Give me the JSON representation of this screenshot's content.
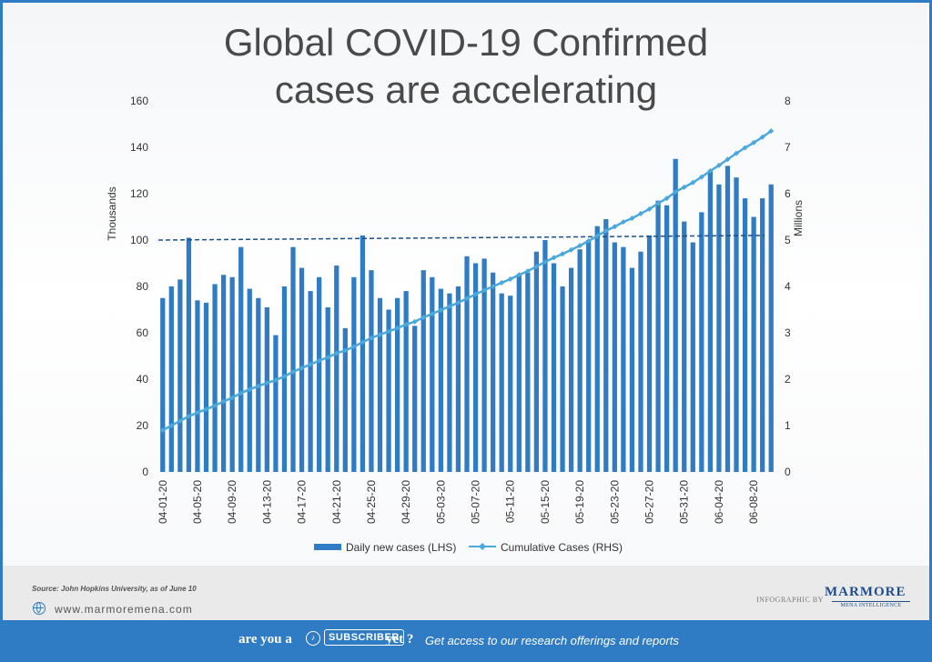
{
  "chart_data": {
    "type": "bar+line",
    "title_line1": "Global COVID-19 Confirmed",
    "title_line2": "cases are accelerating",
    "ylabel_left": "Thousands",
    "ylabel_right": "Millions",
    "ylim_left": [
      0,
      160
    ],
    "ylim_right": [
      0,
      8
    ],
    "yticks_left": [
      "0",
      "20",
      "40",
      "60",
      "80",
      "100",
      "120",
      "140",
      "160"
    ],
    "yticks_right": [
      "0",
      "1",
      "2",
      "3",
      "4",
      "5",
      "6",
      "7",
      "8"
    ],
    "x_tick_labels": [
      "04-01-20",
      "04-05-20",
      "04-09-20",
      "04-13-20",
      "04-17-20",
      "04-21-20",
      "04-25-20",
      "04-29-20",
      "05-03-20",
      "05-07-20",
      "05-11-20",
      "05-15-20",
      "05-19-20",
      "05-23-20",
      "05-27-20",
      "05-31-20",
      "06-04-20",
      "06-08-20"
    ],
    "series": [
      {
        "name": "Daily new cases (LHS)",
        "axis": "left",
        "color": "#2f7bc4",
        "values": [
          75,
          80,
          83,
          101,
          74,
          73,
          81,
          85,
          84,
          97,
          79,
          75,
          71,
          59,
          80,
          97,
          88,
          78,
          84,
          71,
          89,
          62,
          84,
          102,
          87,
          75,
          70,
          75,
          78,
          63,
          87,
          84,
          79,
          77,
          80,
          93,
          90,
          92,
          86,
          77,
          76,
          85,
          86,
          95,
          100,
          90,
          80,
          88,
          96,
          100,
          106,
          109,
          99,
          97,
          88,
          95,
          102,
          117,
          115,
          135,
          108,
          99,
          112,
          130,
          124,
          132,
          127,
          118,
          110,
          118,
          124
        ],
        "trend_line": {
          "style": "dashed",
          "start": 100,
          "end": 102
        }
      },
      {
        "name": "Cumulative Cases (RHS)",
        "axis": "right",
        "color": "#4aa8dd",
        "marker": "diamond",
        "values": [
          0.9,
          1.0,
          1.1,
          1.2,
          1.28,
          1.35,
          1.43,
          1.52,
          1.6,
          1.7,
          1.78,
          1.85,
          1.92,
          1.98,
          2.06,
          2.16,
          2.24,
          2.32,
          2.4,
          2.47,
          2.56,
          2.62,
          2.7,
          2.8,
          2.89,
          2.96,
          3.03,
          3.1,
          3.18,
          3.24,
          3.33,
          3.41,
          3.49,
          3.57,
          3.65,
          3.74,
          3.83,
          3.92,
          4.0,
          4.08,
          4.16,
          4.25,
          4.33,
          4.43,
          4.53,
          4.62,
          4.7,
          4.79,
          4.88,
          4.98,
          5.09,
          5.2,
          5.29,
          5.39,
          5.47,
          5.57,
          5.67,
          5.79,
          5.9,
          6.04,
          6.14,
          6.24,
          6.36,
          6.49,
          6.61,
          6.74,
          6.87,
          6.99,
          7.1,
          7.22,
          7.35
        ]
      }
    ],
    "legend_position": "bottom"
  },
  "footer": {
    "source": "Source: John Hopkins University, as of June 10",
    "website": "www.marmoremena.com",
    "infographic_by": "INFOGRAPHIC BY",
    "logo_name": "MARMORE",
    "logo_sub": "MENA INTELLIGENCE"
  },
  "banner": {
    "part1": "are you a",
    "subscriber": "SUBSCRIBER",
    "part2": "yet ?",
    "tagline": "Get access to our research offerings and reports"
  }
}
